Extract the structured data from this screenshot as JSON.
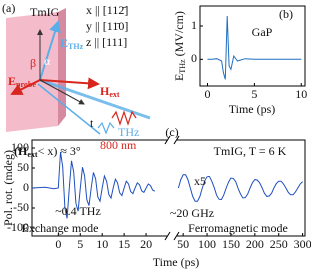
{
  "diagram": {
    "label": "(a)",
    "material": "TmIG",
    "axes": [
      "x || [112̄]",
      "y || [11̄0]",
      "z || [111]"
    ],
    "e_probe": {
      "main": "E",
      "sub": "probe"
    },
    "h_ext": {
      "main": "H",
      "sub": "ext"
    },
    "e_thz": {
      "main": "E",
      "sub": "THz"
    },
    "beta": "β",
    "alpha": "α",
    "thz": "THz",
    "pump": "800 nm",
    "delay": "t",
    "caption": {
      "main": "(H",
      "sub": "ext",
      "rest": "< x) ≈ 3°"
    }
  },
  "chart_data": [
    {
      "type": "line",
      "label": "(b)",
      "annotation": "GaP",
      "ylabel": {
        "main": "E",
        "sub": "THz",
        "rest": " (MV/cm)"
      },
      "xlabel": "Time (ps)",
      "color": "#1f6fc0",
      "x": [
        0,
        0.5,
        1,
        1.5,
        1.7,
        1.9,
        2.1,
        2.3,
        2.5,
        2.8,
        3.2,
        4,
        5,
        6,
        8,
        10
      ],
      "values": [
        0,
        0,
        0.02,
        -0.05,
        -0.4,
        -0.6,
        1.3,
        -0.2,
        -0.3,
        0.1,
        -0.05,
        0.02,
        0,
        0,
        0,
        0
      ],
      "xlim": [
        -0.8,
        10.4
      ],
      "xticks": [
        0,
        5,
        10
      ],
      "ylim": [
        -0.8,
        1.6
      ],
      "yticks": [
        0,
        1
      ]
    },
    {
      "type": "line",
      "label": "(c)",
      "annotations": [
        "TmIG, T = 6 K",
        "x5",
        "~0.4 THz",
        "~20 GHz",
        "Exchange mode",
        "Ferromagnetic mode"
      ],
      "ylabel": "Pol. rot. (mdeg)",
      "xlabel": "Time (ps)",
      "color": "#1f4fbf",
      "ylim": [
        -120,
        120
      ],
      "yticks": [
        -100,
        -50,
        0,
        50,
        100
      ],
      "segments": [
        {
          "xlim": [
            -6,
            25
          ],
          "xticks": [
            0,
            5,
            10,
            15,
            20
          ],
          "x": [
            -6,
            -3,
            -1,
            0,
            0.5,
            1,
            1.5,
            2,
            2.5,
            3,
            3.5,
            4,
            4.5,
            5,
            5.5,
            6,
            6.5,
            7,
            7.5,
            8,
            8.5,
            9,
            9.5,
            10,
            10.5,
            11,
            11.5,
            12,
            12.5,
            13,
            13.5,
            14,
            14.5,
            15,
            15.5,
            16,
            16.5,
            17,
            17.5,
            18,
            18.5,
            19,
            19.5,
            20,
            20.5,
            21,
            21.5,
            22
          ],
          "values": [
            0,
            2,
            -2,
            0,
            90,
            53,
            -50,
            -76,
            0,
            68,
            40,
            -38,
            -58,
            0,
            52,
            30,
            -29,
            -44,
            0,
            39,
            23,
            -22,
            -33,
            0,
            30,
            17,
            -16,
            -25,
            0,
            22,
            13,
            -12,
            -19,
            0,
            17,
            10,
            -9,
            -14,
            0,
            13,
            8,
            -7,
            -11,
            0,
            10,
            6,
            -5,
            -8
          ]
        },
        {
          "xlim": [
            35,
            305
          ],
          "xticks": [
            50,
            100,
            150,
            200,
            250,
            300
          ],
          "x": [
            40,
            45,
            50,
            55,
            60,
            65,
            70,
            75,
            80,
            85,
            90,
            95,
            100,
            105,
            110,
            115,
            120,
            125,
            130,
            135,
            140,
            145,
            150,
            155,
            160,
            165,
            170,
            175,
            180,
            185,
            190,
            195,
            200,
            205,
            210,
            215,
            220,
            225,
            230,
            235,
            240,
            245,
            250,
            255,
            260,
            265,
            270,
            275,
            280,
            285,
            290,
            295,
            300
          ],
          "values": [
            0,
            21,
            33,
            33,
            21,
            0,
            -21,
            -33,
            -33,
            -21,
            0,
            18,
            28,
            29,
            17,
            1,
            -18,
            -28,
            -29,
            -17,
            0,
            15,
            25,
            24,
            16,
            -1,
            -15,
            -25,
            -24,
            -15,
            0,
            13,
            21,
            20,
            13,
            1,
            -13,
            -21,
            -20,
            -13,
            0,
            11,
            17,
            17,
            10,
            0,
            -11,
            -17,
            -17,
            -10,
            0,
            10,
            16
          ]
        }
      ]
    }
  ]
}
